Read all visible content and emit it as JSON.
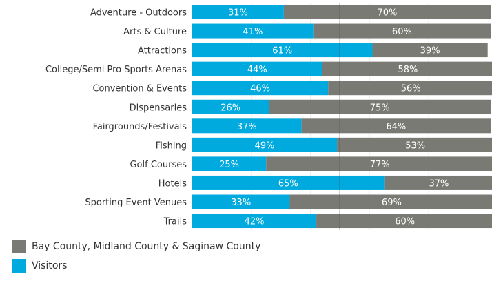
{
  "chart_data": {
    "type": "bar",
    "orientation": "horizontal",
    "stacked": true,
    "categories": [
      "Adventure - Outdoors",
      "Arts & Culture",
      "Attractions",
      "College/Semi Pro Sports Arenas",
      "Convention & Events",
      "Dispensaries",
      "Fairgrounds/Festivals",
      "Fishing",
      "Golf Courses",
      "Hotels",
      "Sporting Event Venues",
      "Trails"
    ],
    "series": [
      {
        "name": "Visitors",
        "color": "#00aadf",
        "values": [
          31,
          41,
          61,
          44,
          46,
          26,
          37,
          49,
          25,
          65,
          33,
          42
        ]
      },
      {
        "name": "Bay County, Midland County & Saginaw County",
        "color": "#7a7a75",
        "values": [
          70,
          60,
          39,
          58,
          56,
          75,
          64,
          53,
          77,
          37,
          69,
          60
        ]
      }
    ],
    "xlim": [
      0,
      101
    ],
    "reference_line": 50,
    "legend_position": "bottom-left",
    "legend": [
      "Bay County, Midland County & Saginaw County",
      "Visitors"
    ]
  }
}
